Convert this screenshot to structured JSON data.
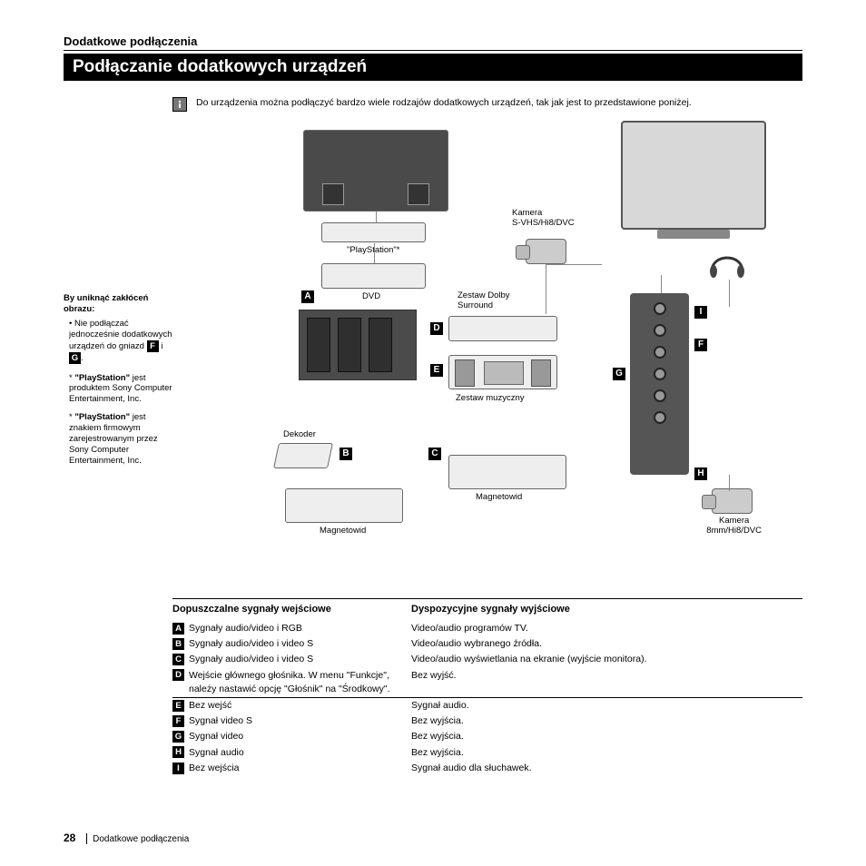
{
  "section_header": "Dodatkowe podłączenia",
  "title": "Podłączanie dodatkowych urządzeń",
  "intro": "Do urządzenia można podłączyć bardzo wiele rodzajów dodatkowych urządzeń, tak jak jest to przedstawione poniżej.",
  "sidebar": {
    "title": "By uniknąć zakłóceń obrazu:",
    "bullet": "Nie podłączać jednocześnie dodatkowych urządzeń do gniazd ",
    "bullet_letters": [
      "F",
      "G"
    ],
    "bullet_tail": "i",
    "bullet_end": ".",
    "note1_q": "\"PlayStation\"",
    "note1": "jest produktem Sony Computer Entertainment, Inc.",
    "note2_q": "\"PlayStation\"",
    "note2": "jest znakiem firmowym zarejestrowanym przez Sony Computer Entertainment, Inc."
  },
  "labels": {
    "camera_svhs": "Kamera\nS-VHS/Hi8/DVC",
    "playstation": "\"PlayStation\"*",
    "dvd": "DVD",
    "dolby": "Zestaw Dolby\nSurround",
    "music": "Zestaw muzyczny",
    "decoder": "Dekoder",
    "vcr1": "Magnetowid",
    "vcr2": "Magnetowid",
    "camera_8mm": "Kamera\n8mm/Hi8/DVC"
  },
  "letters": [
    "A",
    "B",
    "C",
    "D",
    "E",
    "F",
    "G",
    "H",
    "I"
  ],
  "table": {
    "col1": "Dopuszczalne sygnały wejściowe",
    "col2": "Dyspozycyjne sygnały wyjściowe",
    "rows": [
      {
        "l": "A",
        "in": "Sygnały audio/video i RGB",
        "out": "Video/audio programów TV."
      },
      {
        "l": "B",
        "in": "Sygnały audio/video i video S",
        "out": "Video/audio wybranego źródła."
      },
      {
        "l": "C",
        "in": "Sygnały audio/video i video S",
        "out": "Video/audio wyświetlania na ekranie (wyjście monitora)."
      },
      {
        "l": "D",
        "in": "Wejście głównego głośnika. W menu \"Funkcje\", należy nastawić opcję \"Głośnik\" na \"Środkowy\".",
        "out": "Bez wyjść."
      },
      {
        "l": "E",
        "in": "Bez wejść",
        "out": "Sygnał audio."
      },
      {
        "l": "F",
        "in": "Sygnał video S",
        "out": "Bez wyjścia."
      },
      {
        "l": "G",
        "in": "Sygnał video",
        "out": "Bez wyjścia."
      },
      {
        "l": "H",
        "in": "Sygnał audio",
        "out": "Bez wyjścia."
      },
      {
        "l": "I",
        "in": "Bez wejścia",
        "out": "Sygnał audio dla słuchawek."
      }
    ]
  },
  "footer": {
    "page": "28",
    "text": "Dodatkowe podłączenia"
  }
}
